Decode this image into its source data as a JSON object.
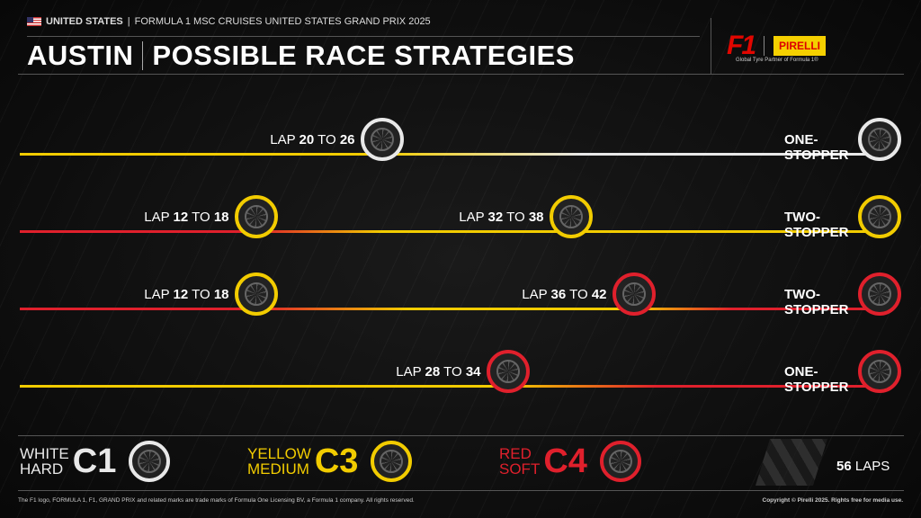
{
  "header": {
    "country": "UNITED STATES",
    "event": "FORMULA 1 MSC CRUISES UNITED STATES GRAND PRIX 2025",
    "city": "AUSTIN",
    "title": "POSSIBLE RACE STRATEGIES",
    "f1_logo": "F1",
    "pirelli_logo": "PIRELLI",
    "partner": "Global Tyre Partner of Formula 1®"
  },
  "colors": {
    "white": "#e8e8e8",
    "yellow": "#f2cc00",
    "red": "#e0202c"
  },
  "total_laps": 56,
  "strategies": [
    {
      "name": "ONE-STOPPER",
      "stints": [
        "yellow",
        "white"
      ],
      "stops": [
        {
          "from": 20,
          "to": 26
        }
      ]
    },
    {
      "name": "TWO-STOPPER",
      "stints": [
        "red",
        "yellow",
        "yellow"
      ],
      "stops": [
        {
          "from": 12,
          "to": 18
        },
        {
          "from": 32,
          "to": 38
        }
      ]
    },
    {
      "name": "TWO-STOPPER",
      "stints": [
        "red",
        "yellow",
        "red"
      ],
      "stops": [
        {
          "from": 12,
          "to": 18
        },
        {
          "from": 36,
          "to": 42
        }
      ]
    },
    {
      "name": "ONE-STOPPER",
      "stints": [
        "yellow",
        "red"
      ],
      "stops": [
        {
          "from": 28,
          "to": 34
        }
      ]
    }
  ],
  "lap_word": "LAP",
  "to_word": "TO",
  "legend": [
    {
      "color": "white",
      "line1": "WHITE",
      "line2": "HARD",
      "code": "C1"
    },
    {
      "color": "yellow",
      "line1": "YELLOW",
      "line2": "MEDIUM",
      "code": "C3"
    },
    {
      "color": "red",
      "line1": "RED",
      "line2": "SOFT",
      "code": "C4"
    }
  ],
  "laps_number": "56",
  "laps_label": "LAPS",
  "footer_left": "The F1 logo, FORMULA 1, F1, GRAND PRIX and related marks are trade marks of Formula One Licensing BV, a Formula 1 company. All rights reserved.",
  "footer_right": "Copyright © Pirelli 2025. Rights free for media use."
}
